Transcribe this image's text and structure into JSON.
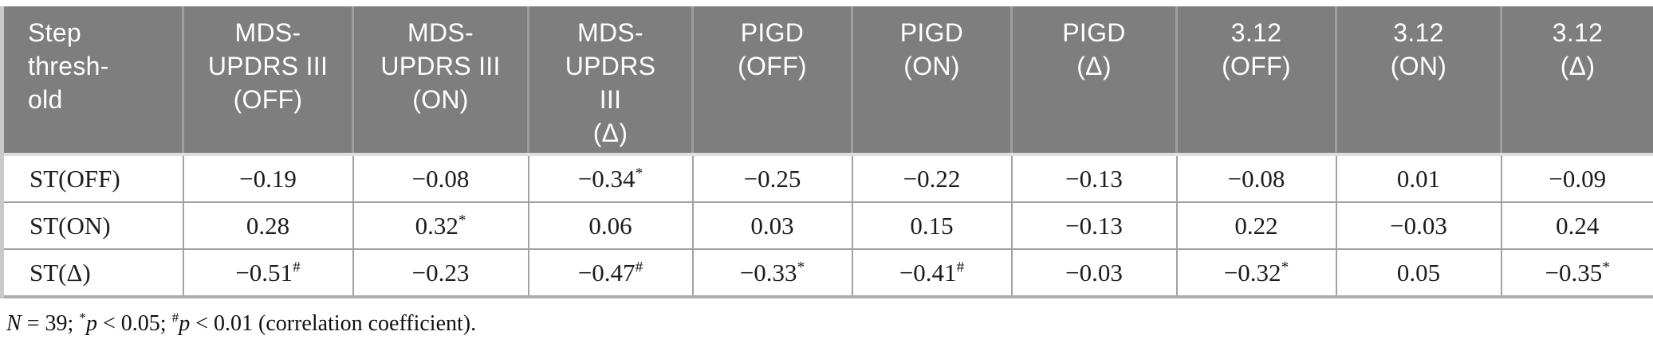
{
  "table": {
    "columns": [
      "Step\nthresh-\nold",
      "MDS-\nUPDRS III\n(OFF)",
      "MDS-\nUPDRS III\n(ON)",
      "MDS-\nUPDRS\nIII\n(Δ)",
      "PIGD\n(OFF)",
      "PIGD\n(ON)",
      "PIGD\n(Δ)",
      "3.12\n(OFF)",
      "3.12\n(ON)",
      "3.12\n(Δ)"
    ],
    "rows": [
      {
        "label": "ST(OFF)",
        "values": [
          "−0.19",
          "−0.08",
          "−0.34*",
          "−0.25",
          "−0.22",
          "−0.13",
          "−0.08",
          "0.01",
          "−0.09"
        ]
      },
      {
        "label": "ST(ON)",
        "values": [
          "0.28",
          "0.32*",
          "0.06",
          "0.03",
          "0.15",
          "−0.13",
          "0.22",
          "−0.03",
          "0.24"
        ]
      },
      {
        "label": "ST(Δ)",
        "values": [
          "−0.51#",
          "−0.23",
          "−0.47#",
          "−0.33*",
          "−0.41#",
          "−0.03",
          "−0.32*",
          "0.05",
          "−0.35*"
        ]
      }
    ],
    "footnote_segments": [
      {
        "text": "N",
        "style": "italic"
      },
      {
        "text": " = 39; ",
        "style": "normal"
      },
      {
        "text": "*",
        "style": "sup"
      },
      {
        "text": "p",
        "style": "italic"
      },
      {
        "text": " < 0.05; ",
        "style": "normal"
      },
      {
        "text": "#",
        "style": "sup"
      },
      {
        "text": "p",
        "style": "italic"
      },
      {
        "text": " < 0.01 (correlation coefficient).",
        "style": "normal"
      }
    ],
    "colors": {
      "header_bg": "#7e7e7e",
      "header_text": "#ffffff",
      "header_divider": "#9e9e9e",
      "cell_border": "#a2a2a2",
      "outer_border": "#c9c9c9",
      "body_text": "#1c1c1c"
    }
  }
}
